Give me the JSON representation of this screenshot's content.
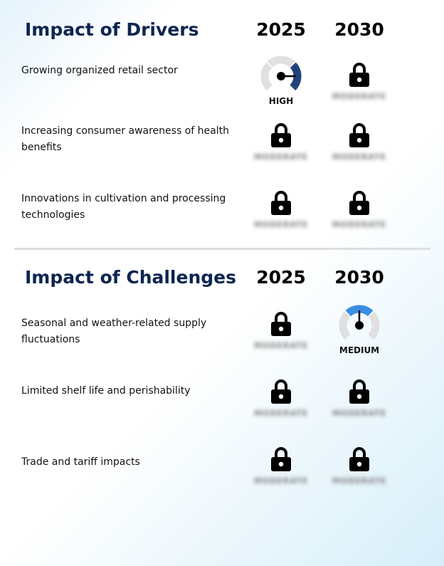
{
  "sections": [
    {
      "title": "Impact of Drivers",
      "years": [
        "2025",
        "2030"
      ],
      "rows": [
        {
          "label": "Growing organized retail sector",
          "cells": [
            {
              "type": "gauge",
              "level": "HIGH",
              "color": "#22427a"
            },
            {
              "type": "locked",
              "text": "MODERATE"
            }
          ]
        },
        {
          "label": "Increasing consumer awareness of health benefits",
          "cells": [
            {
              "type": "locked",
              "text": "MODERATE"
            },
            {
              "type": "locked",
              "text": "MODERATE"
            }
          ]
        },
        {
          "label": "Innovations in cultivation and processing technologies",
          "cells": [
            {
              "type": "locked",
              "text": "MODERATE"
            },
            {
              "type": "locked",
              "text": "MODERATE"
            }
          ]
        }
      ]
    },
    {
      "title": "Impact of Challenges",
      "years": [
        "2025",
        "2030"
      ],
      "rows": [
        {
          "label": "Seasonal and weather-related supply fluctuations",
          "cells": [
            {
              "type": "locked",
              "text": "MODERATE"
            },
            {
              "type": "gauge",
              "level": "MEDIUM",
              "color": "#3a8ee0"
            }
          ]
        },
        {
          "label": "Limited shelf life and perishability",
          "cells": [
            {
              "type": "locked",
              "text": "MODERATE"
            },
            {
              "type": "locked",
              "text": "MODERATE"
            }
          ]
        },
        {
          "label": "Trade and tariff impacts",
          "cells": [
            {
              "type": "locked",
              "text": "MODERATE"
            },
            {
              "type": "locked",
              "text": "MODERATE"
            }
          ]
        }
      ]
    }
  ],
  "colors": {
    "title": "#0d2550",
    "gauge_track": "#e0e0e0"
  }
}
